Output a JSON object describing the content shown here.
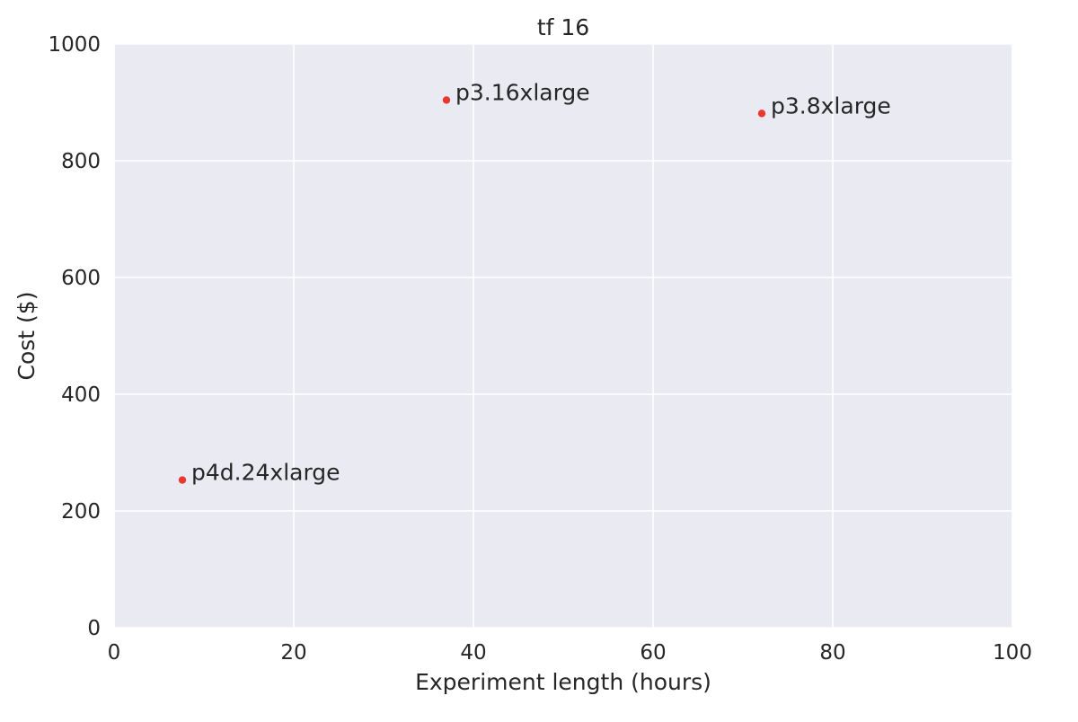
{
  "chart_data": {
    "type": "scatter",
    "title": "tf 16",
    "xlabel": "Experiment length (hours)",
    "ylabel": "Cost ($)",
    "xlim": [
      0,
      100
    ],
    "ylim": [
      0,
      1000
    ],
    "xticks": [
      0,
      20,
      40,
      60,
      80,
      100
    ],
    "yticks": [
      0,
      200,
      400,
      600,
      800,
      1000
    ],
    "grid": true,
    "point_color": "#e8382f",
    "background_color": "#eaeaf2",
    "points": [
      {
        "label": "p4d.24xlarge",
        "x": 7.6,
        "y": 253
      },
      {
        "label": "p3.16xlarge",
        "x": 37,
        "y": 904
      },
      {
        "label": "p3.8xlarge",
        "x": 72.1,
        "y": 881
      }
    ]
  }
}
